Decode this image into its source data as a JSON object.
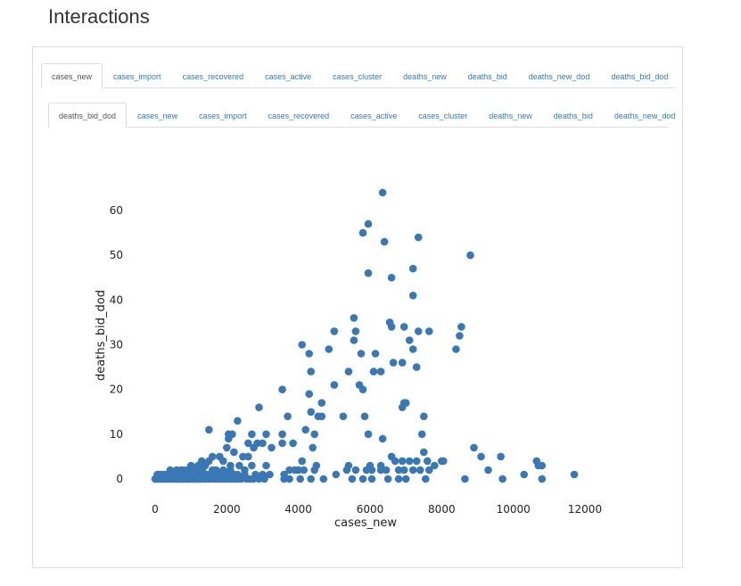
{
  "page": {
    "title": "Interactions"
  },
  "tabs_x": [
    {
      "label": "cases_new",
      "active": true
    },
    {
      "label": "cases_import",
      "active": false
    },
    {
      "label": "cases_recovered",
      "active": false
    },
    {
      "label": "cases_active",
      "active": false
    },
    {
      "label": "cases_cluster",
      "active": false
    },
    {
      "label": "deaths_new",
      "active": false
    },
    {
      "label": "deaths_bid",
      "active": false
    },
    {
      "label": "deaths_new_dod",
      "active": false
    },
    {
      "label": "deaths_bid_dod",
      "active": false
    }
  ],
  "tabs_y": [
    {
      "label": "deaths_bid_dod",
      "active": true
    },
    {
      "label": "cases_new",
      "active": false
    },
    {
      "label": "cases_import",
      "active": false
    },
    {
      "label": "cases_recovered",
      "active": false
    },
    {
      "label": "cases_active",
      "active": false
    },
    {
      "label": "cases_cluster",
      "active": false
    },
    {
      "label": "deaths_new",
      "active": false
    },
    {
      "label": "deaths_bid",
      "active": false
    },
    {
      "label": "deaths_new_dod",
      "active": false
    }
  ],
  "colors": {
    "point": "#3a77b5",
    "active_tab_text": "#555555",
    "tab_text": "#337ab7",
    "border": "#dddddd"
  },
  "chart_data": {
    "type": "scatter",
    "xlabel": "cases_new",
    "ylabel": "deaths_bid_dod",
    "xlim": [
      -500,
      12500
    ],
    "ylim": [
      -2,
      66
    ],
    "xticks": [
      0,
      2000,
      4000,
      6000,
      8000,
      10000,
      12000
    ],
    "yticks": [
      0,
      10,
      20,
      30,
      40,
      50,
      60
    ],
    "grid": false,
    "points": [
      [
        6350,
        64
      ],
      [
        5950,
        57
      ],
      [
        5800,
        55
      ],
      [
        6400,
        53
      ],
      [
        7350,
        54
      ],
      [
        8800,
        50
      ],
      [
        5950,
        46
      ],
      [
        6600,
        45
      ],
      [
        7200,
        47
      ],
      [
        7200,
        41
      ],
      [
        5550,
        36
      ],
      [
        6550,
        35
      ],
      [
        6600,
        34
      ],
      [
        6950,
        34
      ],
      [
        8550,
        34
      ],
      [
        7350,
        33
      ],
      [
        7650,
        33
      ],
      [
        5000,
        33
      ],
      [
        5600,
        33
      ],
      [
        8500,
        32
      ],
      [
        5550,
        31
      ],
      [
        7100,
        31
      ],
      [
        4100,
        30
      ],
      [
        4850,
        29
      ],
      [
        7200,
        29
      ],
      [
        8400,
        29
      ],
      [
        4300,
        28
      ],
      [
        5750,
        28
      ],
      [
        6150,
        28
      ],
      [
        6650,
        26
      ],
      [
        6900,
        26
      ],
      [
        7300,
        25
      ],
      [
        4350,
        24
      ],
      [
        5400,
        24
      ],
      [
        6100,
        24
      ],
      [
        6300,
        24
      ],
      [
        5000,
        21
      ],
      [
        5700,
        21
      ],
      [
        5800,
        20
      ],
      [
        3550,
        20
      ],
      [
        4300,
        19
      ],
      [
        4650,
        17
      ],
      [
        6950,
        17
      ],
      [
        7000,
        17
      ],
      [
        6900,
        16
      ],
      [
        2900,
        16
      ],
      [
        3700,
        14
      ],
      [
        4350,
        15
      ],
      [
        4550,
        14
      ],
      [
        4650,
        14
      ],
      [
        5250,
        14
      ],
      [
        5850,
        14
      ],
      [
        7500,
        14
      ],
      [
        2300,
        13
      ],
      [
        1500,
        11
      ],
      [
        4200,
        11
      ],
      [
        5950,
        10
      ],
      [
        6350,
        9
      ],
      [
        7450,
        10
      ],
      [
        2050,
        10
      ],
      [
        2150,
        10
      ],
      [
        2050,
        9
      ],
      [
        3100,
        10
      ],
      [
        2700,
        10
      ],
      [
        3550,
        10
      ],
      [
        4450,
        10
      ],
      [
        2600,
        8
      ],
      [
        2750,
        7
      ],
      [
        2850,
        8
      ],
      [
        3000,
        8
      ],
      [
        3250,
        7
      ],
      [
        3550,
        8
      ],
      [
        3850,
        8
      ],
      [
        4400,
        7
      ],
      [
        8900,
        7
      ],
      [
        2000,
        7
      ],
      [
        2200,
        6
      ],
      [
        1600,
        5
      ],
      [
        1800,
        5
      ],
      [
        2450,
        5
      ],
      [
        2600,
        5
      ],
      [
        9100,
        5
      ],
      [
        9650,
        5
      ],
      [
        1200,
        3
      ],
      [
        1300,
        4
      ],
      [
        1400,
        3
      ],
      [
        1500,
        4
      ],
      [
        1700,
        2
      ],
      [
        1900,
        4
      ],
      [
        2100,
        3
      ],
      [
        2350,
        3
      ],
      [
        2500,
        2
      ],
      [
        2700,
        3
      ],
      [
        4100,
        4
      ],
      [
        4500,
        3
      ],
      [
        5400,
        3
      ],
      [
        6000,
        3
      ],
      [
        6300,
        3
      ],
      [
        6600,
        5
      ],
      [
        6700,
        4
      ],
      [
        6900,
        4
      ],
      [
        7100,
        4
      ],
      [
        7300,
        4
      ],
      [
        7500,
        6
      ],
      [
        7600,
        4
      ],
      [
        7800,
        3
      ],
      [
        8000,
        4
      ],
      [
        8050,
        4
      ],
      [
        10650,
        4
      ],
      [
        10800,
        3
      ],
      [
        10700,
        3
      ],
      [
        3100,
        3
      ],
      [
        3200,
        1
      ],
      [
        3600,
        1
      ],
      [
        3750,
        2
      ],
      [
        3900,
        2
      ],
      [
        4000,
        2
      ],
      [
        4150,
        2
      ],
      [
        4450,
        2
      ],
      [
        5050,
        1
      ],
      [
        5350,
        2
      ],
      [
        5600,
        2
      ],
      [
        5900,
        2
      ],
      [
        6050,
        2
      ],
      [
        6300,
        2
      ],
      [
        6450,
        2
      ],
      [
        6800,
        2
      ],
      [
        6950,
        2
      ],
      [
        7200,
        2
      ],
      [
        7400,
        2
      ],
      [
        7650,
        2
      ],
      [
        9300,
        2
      ],
      [
        10300,
        1
      ],
      [
        11700,
        1
      ],
      [
        600,
        2
      ],
      [
        800,
        2
      ],
      [
        900,
        2
      ],
      [
        1000,
        3
      ],
      [
        1100,
        2
      ],
      [
        1300,
        2
      ],
      [
        1600,
        2
      ],
      [
        1900,
        2
      ],
      [
        2100,
        2
      ],
      [
        2300,
        1
      ],
      [
        2500,
        1
      ],
      [
        2800,
        1
      ],
      [
        3000,
        1
      ],
      [
        4050,
        0
      ],
      [
        4350,
        0
      ],
      [
        4700,
        0
      ],
      [
        5500,
        0
      ],
      [
        5800,
        0
      ],
      [
        6050,
        0
      ],
      [
        6500,
        0
      ],
      [
        6800,
        0
      ],
      [
        7000,
        0
      ],
      [
        7550,
        0
      ],
      [
        8650,
        0
      ],
      [
        9700,
        0
      ],
      [
        10800,
        0
      ],
      [
        3050,
        0
      ],
      [
        3600,
        0
      ],
      [
        3750,
        0
      ],
      [
        0,
        0
      ],
      [
        50,
        0
      ],
      [
        100,
        1
      ],
      [
        150,
        0
      ],
      [
        200,
        0
      ],
      [
        250,
        1
      ],
      [
        300,
        0
      ],
      [
        350,
        0
      ],
      [
        400,
        1
      ],
      [
        450,
        0
      ],
      [
        500,
        0
      ],
      [
        550,
        1
      ],
      [
        600,
        0
      ],
      [
        650,
        0
      ],
      [
        700,
        1
      ],
      [
        750,
        0
      ],
      [
        800,
        0
      ],
      [
        850,
        1
      ],
      [
        900,
        0
      ],
      [
        950,
        0
      ],
      [
        1000,
        1
      ],
      [
        1050,
        0
      ],
      [
        1100,
        0
      ],
      [
        1150,
        1
      ],
      [
        1200,
        0
      ],
      [
        1250,
        0
      ],
      [
        1300,
        1
      ],
      [
        1350,
        0
      ],
      [
        1400,
        0
      ],
      [
        1450,
        1
      ],
      [
        1500,
        0
      ],
      [
        1550,
        0
      ],
      [
        1600,
        1
      ],
      [
        1650,
        0
      ],
      [
        1700,
        0
      ],
      [
        1750,
        1
      ],
      [
        1800,
        0
      ],
      [
        1850,
        0
      ],
      [
        1900,
        1
      ],
      [
        1950,
        0
      ],
      [
        2000,
        0
      ],
      [
        2050,
        1
      ],
      [
        2100,
        0
      ],
      [
        2150,
        0
      ],
      [
        2200,
        1
      ],
      [
        2250,
        0
      ],
      [
        2300,
        0
      ],
      [
        2400,
        0
      ],
      [
        2550,
        0
      ],
      [
        2650,
        0
      ],
      [
        2750,
        0
      ],
      [
        2900,
        0
      ],
      [
        20,
        0
      ],
      [
        60,
        1
      ],
      [
        120,
        0
      ],
      [
        180,
        1
      ],
      [
        240,
        0
      ],
      [
        320,
        1
      ],
      [
        380,
        0
      ],
      [
        420,
        2
      ],
      [
        480,
        0
      ],
      [
        520,
        1
      ],
      [
        580,
        0
      ],
      [
        620,
        1
      ],
      [
        680,
        0
      ],
      [
        720,
        2
      ],
      [
        780,
        0
      ],
      [
        820,
        1
      ],
      [
        880,
        0
      ],
      [
        920,
        1
      ],
      [
        980,
        0
      ],
      [
        1020,
        2
      ],
      [
        1080,
        0
      ],
      [
        1120,
        1
      ],
      [
        1180,
        0
      ],
      [
        1220,
        1
      ],
      [
        1280,
        0
      ],
      [
        1320,
        2
      ],
      [
        1380,
        0
      ],
      [
        1420,
        1
      ]
    ]
  }
}
